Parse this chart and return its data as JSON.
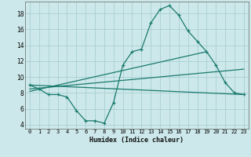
{
  "background_color": "#cce8ea",
  "grid_color": "#aacfd2",
  "line_color": "#1a7a6e",
  "xlabel": "Humidex (Indice chaleur)",
  "xlim": [
    -0.5,
    23.5
  ],
  "ylim": [
    3.5,
    19.5
  ],
  "yticks": [
    4,
    6,
    8,
    10,
    12,
    14,
    16,
    18
  ],
  "xticks": [
    0,
    1,
    2,
    3,
    4,
    5,
    6,
    7,
    8,
    9,
    10,
    11,
    12,
    13,
    14,
    15,
    16,
    17,
    18,
    19,
    20,
    21,
    22,
    23
  ],
  "series1_x": [
    0,
    1,
    2,
    3,
    4,
    5,
    6,
    7,
    8,
    9,
    10,
    11,
    12,
    13,
    14,
    15,
    16,
    17,
    18,
    19,
    20,
    21,
    22,
    23
  ],
  "series1_y": [
    9.0,
    8.5,
    7.8,
    7.8,
    7.5,
    5.8,
    4.5,
    4.5,
    4.2,
    6.8,
    11.5,
    13.2,
    13.5,
    16.8,
    18.5,
    19.0,
    17.8,
    15.8,
    14.5,
    13.2,
    11.5,
    9.3,
    8.0,
    7.8
  ],
  "series2_x": [
    0,
    23
  ],
  "series2_y": [
    9.0,
    7.8
  ],
  "series3_x": [
    0,
    19
  ],
  "series3_y": [
    8.2,
    13.2
  ],
  "series4_x": [
    0,
    23
  ],
  "series4_y": [
    8.5,
    11.0
  ]
}
